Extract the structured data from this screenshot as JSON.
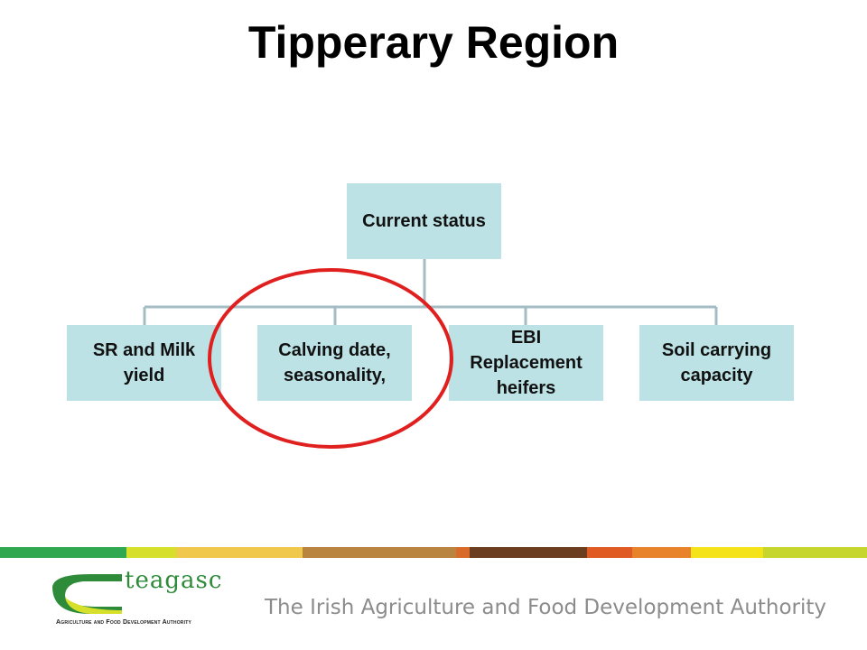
{
  "title": "Tipperary Region",
  "root": {
    "lines": [
      "Current status"
    ]
  },
  "nodes": [
    {
      "lines": [
        "SR and Milk",
        "yield"
      ]
    },
    {
      "lines": [
        "Calving date,",
        "seasonality,"
      ]
    },
    {
      "lines": [
        "EBI",
        "Replacement",
        "heifers"
      ]
    },
    {
      "lines": [
        "Soil carrying",
        "capacity"
      ]
    }
  ],
  "footer": {
    "logo": "teagasc",
    "logo_subtitle": "Agriculture and Food Development Authority",
    "tagline": "The Irish Agriculture and Food Development Authority"
  }
}
